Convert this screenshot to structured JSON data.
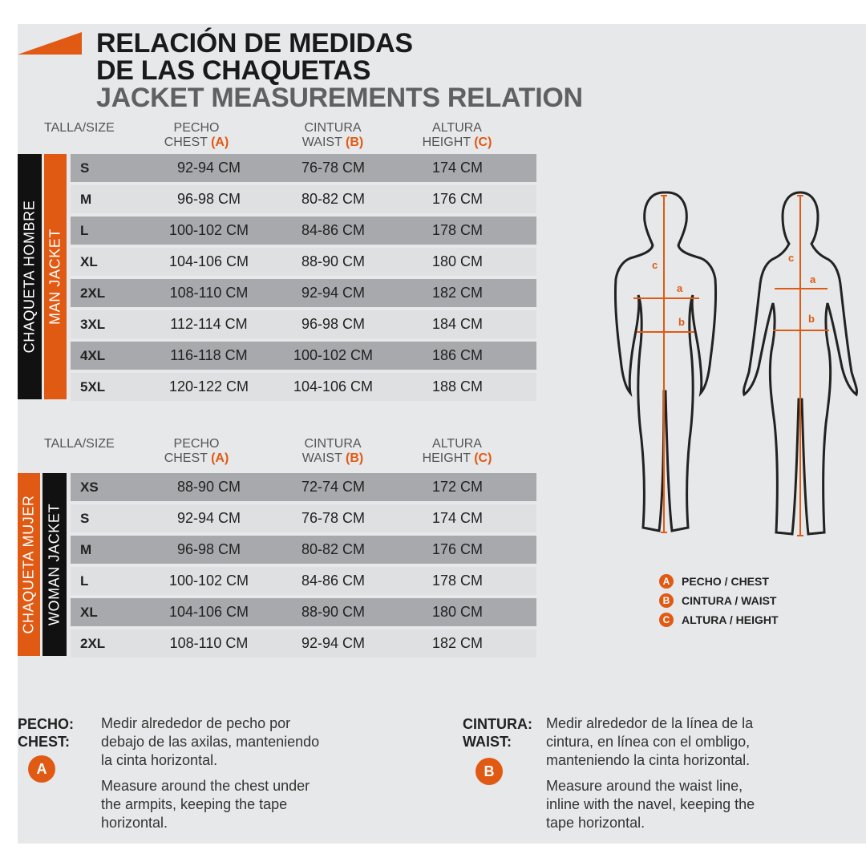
{
  "title": {
    "line1": "RELACIÓN DE MEDIDAS",
    "line2": "DE LAS CHAQUETAS",
    "line3": "JACKET MEASUREMENTS RELATION"
  },
  "headers": {
    "size": "TALLA/SIZE",
    "chest_es": "PECHO",
    "chest_en": "CHEST",
    "chest_tag": "(A)",
    "waist_es": "CINTURA",
    "waist_en": "WAIST",
    "waist_tag": "(B)",
    "height_es": "ALTURA",
    "height_en": "HEIGHT",
    "height_tag": "(C)"
  },
  "man": {
    "label_es": "CHAQUETA HOMBRE",
    "label_en": "MAN JACKET",
    "rows": [
      {
        "size": "S",
        "chest": "92-94 CM",
        "waist": "76-78 CM",
        "height": "174 CM"
      },
      {
        "size": "M",
        "chest": "96-98 CM",
        "waist": "80-82 CM",
        "height": "176 CM"
      },
      {
        "size": "L",
        "chest": "100-102 CM",
        "waist": "84-86 CM",
        "height": "178 CM"
      },
      {
        "size": "XL",
        "chest": "104-106 CM",
        "waist": "88-90 CM",
        "height": "180 CM"
      },
      {
        "size": "2XL",
        "chest": "108-110 CM",
        "waist": "92-94 CM",
        "height": "182 CM"
      },
      {
        "size": "3XL",
        "chest": "112-114 CM",
        "waist": "96-98 CM",
        "height": "184 CM"
      },
      {
        "size": "4XL",
        "chest": "116-118 CM",
        "waist": "100-102 CM",
        "height": "186 CM"
      },
      {
        "size": "5XL",
        "chest": "120-122 CM",
        "waist": "104-106 CM",
        "height": "188 CM"
      }
    ]
  },
  "woman": {
    "label_es": "CHAQUETA MUJER",
    "label_en": "WOMAN JACKET",
    "rows": [
      {
        "size": "XS",
        "chest": "88-90 CM",
        "waist": "72-74 CM",
        "height": "172 CM"
      },
      {
        "size": "S",
        "chest": "92-94 CM",
        "waist": "76-78 CM",
        "height": "174 CM"
      },
      {
        "size": "M",
        "chest": "96-98 CM",
        "waist": "80-82 CM",
        "height": "176 CM"
      },
      {
        "size": "L",
        "chest": "100-102 CM",
        "waist": "84-86 CM",
        "height": "178 CM"
      },
      {
        "size": "XL",
        "chest": "104-106 CM",
        "waist": "88-90 CM",
        "height": "180 CM"
      },
      {
        "size": "2XL",
        "chest": "108-110 CM",
        "waist": "92-94 CM",
        "height": "182 CM"
      }
    ]
  },
  "figure_letters": {
    "a": "a",
    "b": "b",
    "c": "c"
  },
  "legend": [
    {
      "letter": "A",
      "label": "PECHO / CHEST"
    },
    {
      "letter": "B",
      "label": "CINTURA / WAIST"
    },
    {
      "letter": "C",
      "label": "ALTURA / HEIGHT"
    }
  ],
  "notes": {
    "chest": {
      "label_es": "PECHO:",
      "label_en": "CHEST:",
      "letter": "A",
      "text_es_lines": [
        "Medir alrededor de pecho por",
        "debajo de las axilas, manteniendo",
        "la cinta horizontal."
      ],
      "text_en_lines": [
        "Measure around the chest under",
        "the armpits, keeping the tape",
        "horizontal."
      ]
    },
    "waist": {
      "label_es": "CINTURA:",
      "label_en": "WAIST:",
      "letter": "B",
      "text_es_lines": [
        "Medir alrededor de la línea de la",
        "cintura, en línea con el ombligo,",
        "manteniendo la cinta horizontal."
      ],
      "text_en_lines": [
        "Measure around the waist line,",
        "inline with the navel, keeping the",
        "tape horizontal."
      ]
    }
  },
  "colors": {
    "accent": "#e05a14",
    "row_dark": "#a7a9ac",
    "row_light": "#dfe0e1",
    "background": "#e7e8e9",
    "bar_black": "#111111"
  }
}
